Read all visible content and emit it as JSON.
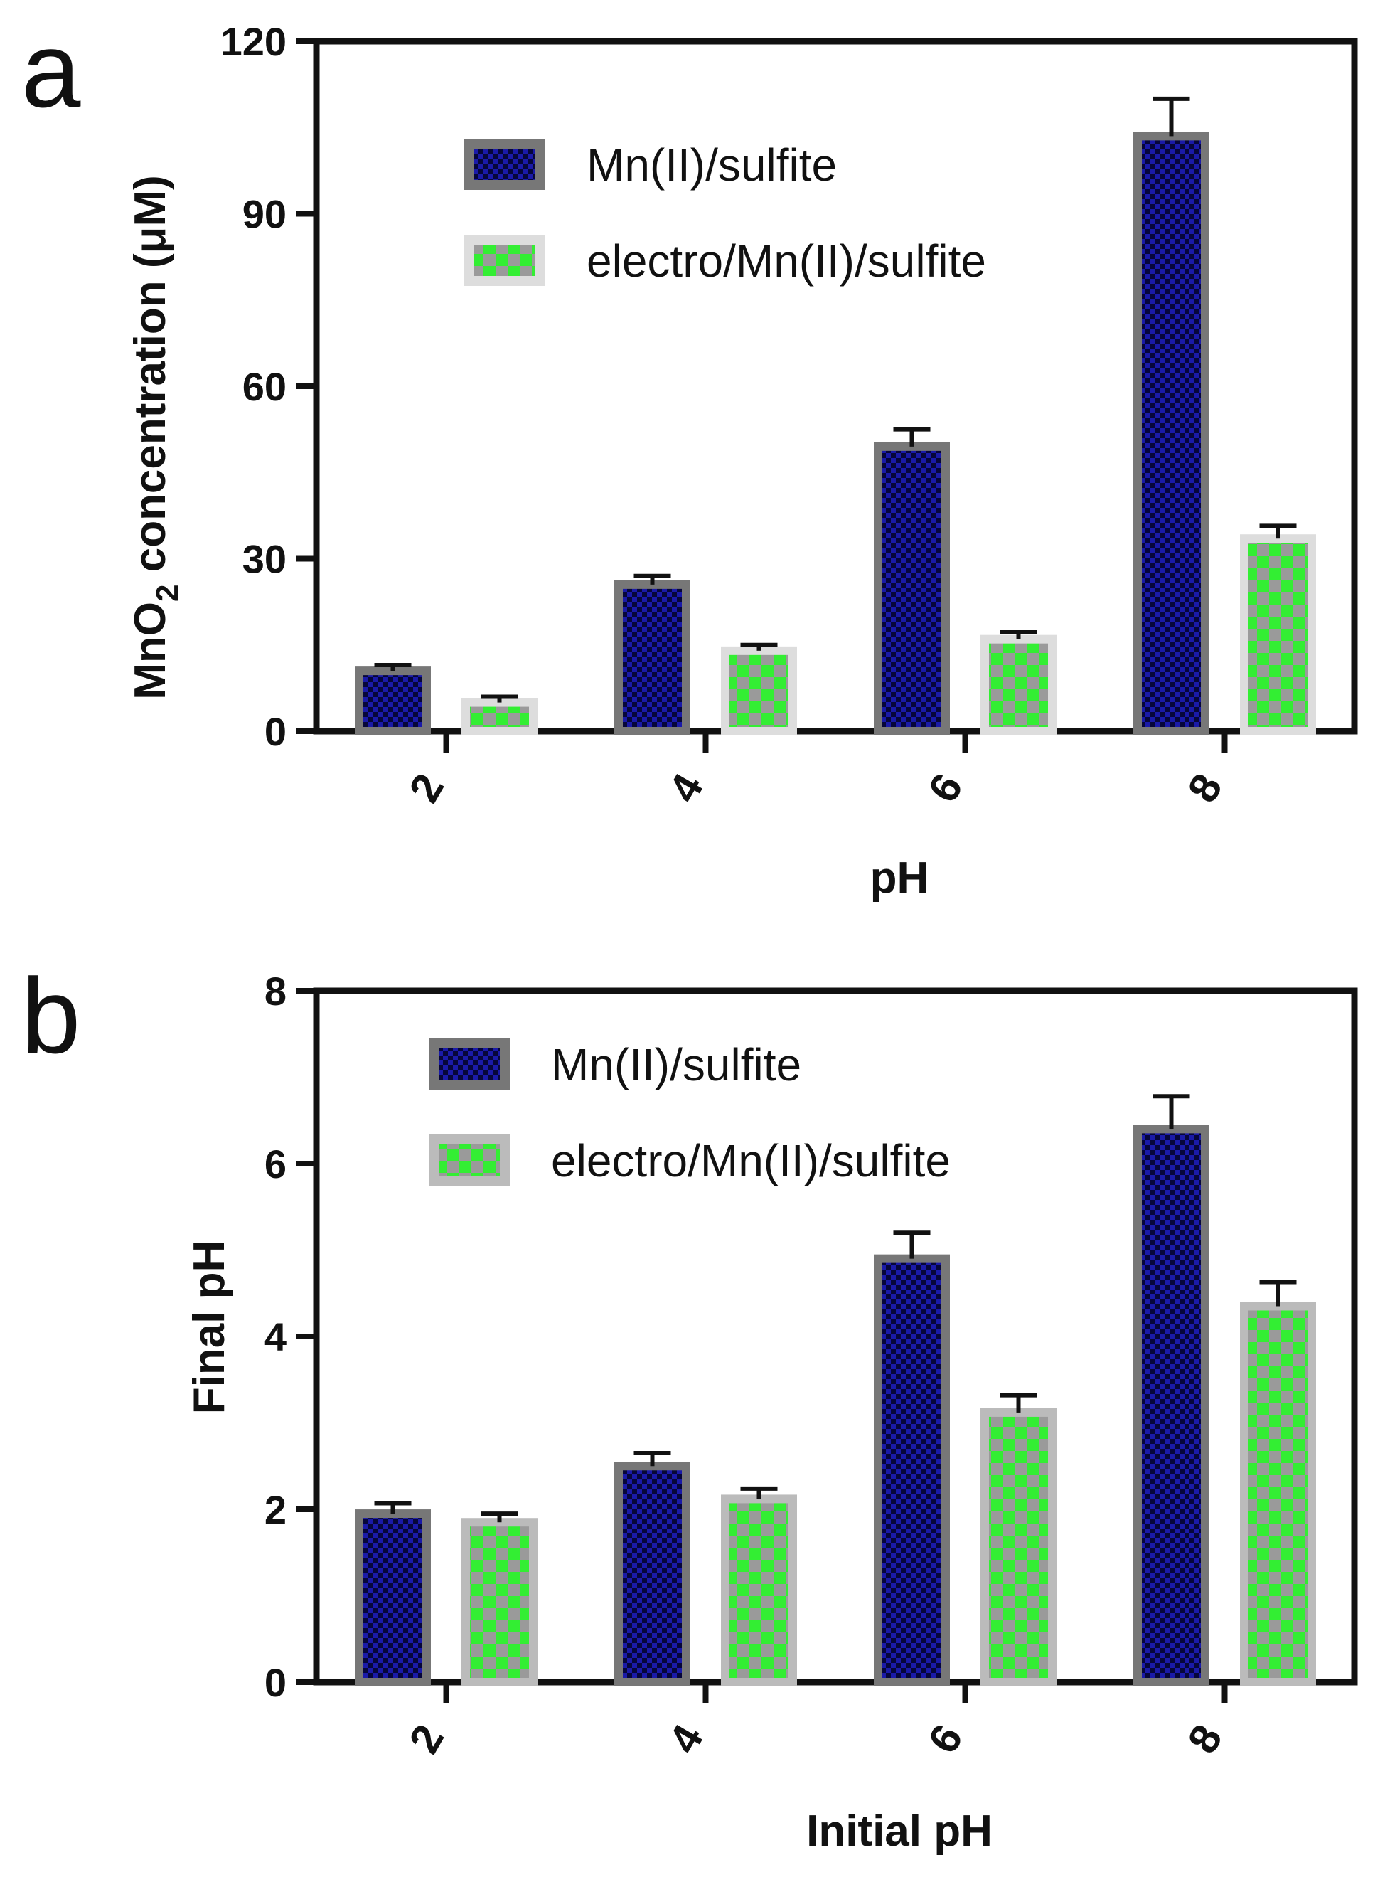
{
  "chart_data": [
    {
      "panel": "a",
      "type": "bar",
      "categories": [
        "2",
        "4",
        "6",
        "8"
      ],
      "xlabel": "pH",
      "ylabel": "MnO2 concentration (μM)",
      "ylim": [
        0,
        120
      ],
      "yticks": [
        "0",
        "30",
        "60",
        "90",
        "120"
      ],
      "legend_position": "top-left",
      "series": [
        {
          "name": "Mn(II)/sulfite",
          "values": [
            10.5,
            25.5,
            49.5,
            103.5
          ],
          "errors": [
            1.0,
            1.5,
            3.0,
            6.5
          ],
          "color": "#1a1aa8",
          "border": "#777777",
          "pattern": "dense-check"
        },
        {
          "name": "electro/Mn(II)/sulfite",
          "values": [
            5.0,
            14.0,
            16.0,
            33.5
          ],
          "errors": [
            1.0,
            1.0,
            1.2,
            2.2
          ],
          "color": "#33ee33",
          "border": "#dddddd",
          "pattern": "green-check"
        }
      ]
    },
    {
      "panel": "b",
      "type": "bar",
      "categories": [
        "2",
        "4",
        "6",
        "8"
      ],
      "xlabel": "Initial pH",
      "ylabel": "Final pH",
      "ylim": [
        0,
        8
      ],
      "yticks": [
        "0",
        "2",
        "4",
        "6",
        "8"
      ],
      "legend_position": "top-left",
      "series": [
        {
          "name": "Mn(II)/sulfite",
          "values": [
            1.95,
            2.5,
            4.9,
            6.4
          ],
          "errors": [
            0.12,
            0.15,
            0.3,
            0.38
          ],
          "color": "#1a1aa8",
          "border": "#777777",
          "pattern": "dense-check"
        },
        {
          "name": "electro/Mn(II)/sulfite",
          "values": [
            1.85,
            2.12,
            3.12,
            4.35
          ],
          "errors": [
            0.1,
            0.12,
            0.2,
            0.28
          ],
          "color": "#33ee33",
          "border": "#bbbbbb",
          "pattern": "green-check"
        }
      ]
    }
  ]
}
